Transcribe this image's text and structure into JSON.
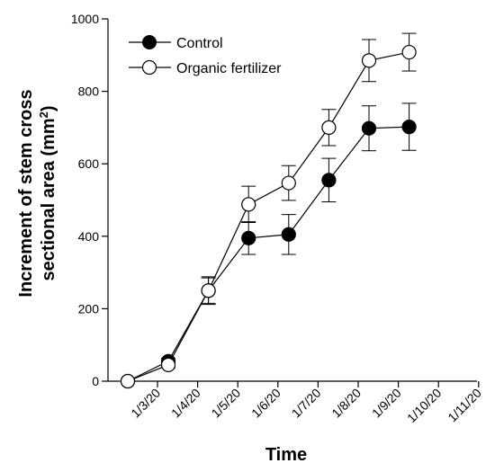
{
  "chart_data": {
    "type": "line",
    "xlabel": "Time",
    "ylabel_line1": "Increment of stem cross",
    "ylabel_line2_prefix": "sectional area (mm",
    "ylabel_line2_sup": "2",
    "ylabel_line2_suffix": ")",
    "ylim": [
      0,
      1000
    ],
    "yticks": [
      "0",
      "200",
      "400",
      "600",
      "800",
      "1000"
    ],
    "xtick_labels": [
      "1/3/20",
      "1/4/20",
      "1/5/20",
      "1/6/20",
      "1/7/20",
      "1/8/20",
      "1/9/20",
      "1/10/20",
      "1/11/20"
    ],
    "grid": false,
    "legend_position": "top-left",
    "series": [
      {
        "name": "Control",
        "marker": "filled-circle",
        "color": "#000000",
        "points": [
          {
            "x": "1/3/20",
            "y": 0,
            "err": 0
          },
          {
            "x": "1/4/20",
            "y": 55,
            "err": 8
          },
          {
            "x": "1/5/20",
            "y": 250,
            "err": 35
          },
          {
            "x": "1/6/20",
            "y": 395,
            "err": 45
          },
          {
            "x": "1/7/20",
            "y": 405,
            "err": 55
          },
          {
            "x": "1/8/20",
            "y": 555,
            "err": 60
          },
          {
            "x": "1/9/20",
            "y": 698,
            "err": 62
          },
          {
            "x": "1/10/20",
            "y": 702,
            "err": 65
          }
        ]
      },
      {
        "name": "Organic fertilizer",
        "marker": "open-circle",
        "color": "#000000",
        "points": [
          {
            "x": "1/3/20",
            "y": 0,
            "err": 0
          },
          {
            "x": "1/4/20",
            "y": 45,
            "err": 8
          },
          {
            "x": "1/5/20",
            "y": 250,
            "err": 38
          },
          {
            "x": "1/6/20",
            "y": 488,
            "err": 50
          },
          {
            "x": "1/7/20",
            "y": 547,
            "err": 48
          },
          {
            "x": "1/8/20",
            "y": 700,
            "err": 50
          },
          {
            "x": "1/9/20",
            "y": 885,
            "err": 58
          },
          {
            "x": "1/10/20",
            "y": 908,
            "err": 52
          }
        ]
      }
    ]
  }
}
